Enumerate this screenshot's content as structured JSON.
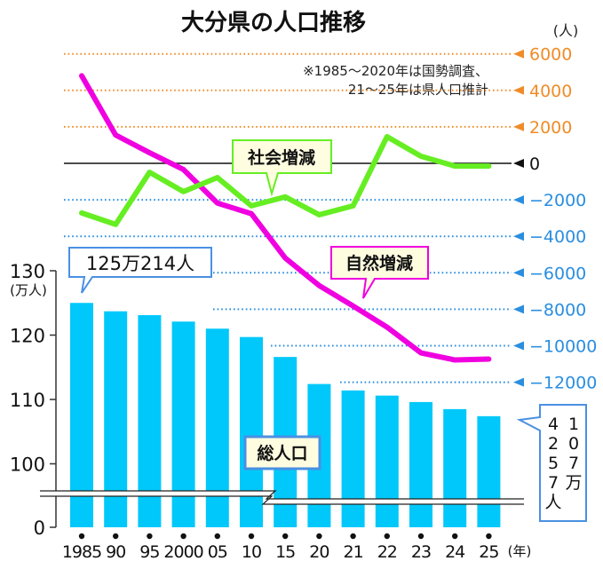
{
  "chart_data": {
    "type": "bar",
    "title": "大分県の人口推移",
    "note": [
      "※1985～2020年は国勢調査、",
      "21～25年は県人口推計"
    ],
    "categories": [
      "1985",
      "90",
      "95",
      "2000",
      "05",
      "10",
      "15",
      "20",
      "21",
      "22",
      "23",
      "24",
      "25"
    ],
    "x_unit": "(年)",
    "left_axis": {
      "unit": "(万人)",
      "ticks": [
        "130",
        "120",
        "110",
        "100",
        "0"
      ],
      "tick_values": [
        130,
        120,
        110,
        100,
        0
      ],
      "ylim": [
        95,
        130
      ],
      "broken": true
    },
    "right_axis": {
      "unit": "(人)",
      "ticks": [
        "6000",
        "4000",
        "2000",
        "0",
        "−2000",
        "−4000",
        "−6000",
        "−8000",
        "−10000",
        "−12000"
      ],
      "tick_values": [
        6000,
        4000,
        2000,
        0,
        -2000,
        -4000,
        -6000,
        -8000,
        -10000,
        -12000
      ],
      "ylim": [
        -12000,
        6000
      ]
    },
    "series": [
      {
        "name": "総人口",
        "kind": "bar",
        "axis": "left",
        "color": "#00c8fa",
        "values": [
          125.0,
          123.7,
          123.1,
          122.1,
          121.0,
          119.7,
          116.6,
          112.4,
          111.4,
          110.6,
          109.6,
          108.5,
          107.4
        ]
      },
      {
        "name": "自然増減",
        "kind": "line",
        "axis": "right",
        "color": "#f000e0",
        "values": [
          4800,
          1550,
          580,
          -340,
          -2180,
          -2760,
          -5190,
          -6700,
          -7820,
          -8980,
          -10390,
          -10780,
          -10730
        ]
      },
      {
        "name": "社会増減",
        "kind": "line",
        "axis": "right",
        "color": "#66ee22",
        "values": [
          -2720,
          -3350,
          -490,
          -1550,
          -780,
          -2330,
          -1840,
          -2820,
          -2330,
          1460,
          390,
          -150,
          -150
        ]
      }
    ],
    "annotations": {
      "first_bar": "125万214人",
      "last_bar_col1": [
        "1",
        "0",
        "7",
        "万"
      ],
      "last_bar_col2": [
        "4",
        "2",
        "5",
        "7",
        "人"
      ],
      "last_bar": "107万4257人",
      "total_label": "総人口",
      "natural_label": "自然増減",
      "social_label": "社会増減"
    },
    "colors": {
      "positive_grid": "#f08c28",
      "negative_grid": "#2a8ee0",
      "bar": "#00c8fa",
      "natural": "#f000e0",
      "social": "#66ee22",
      "label_bg": "#fffde0",
      "bar_callout": "#4a90e2"
    }
  }
}
